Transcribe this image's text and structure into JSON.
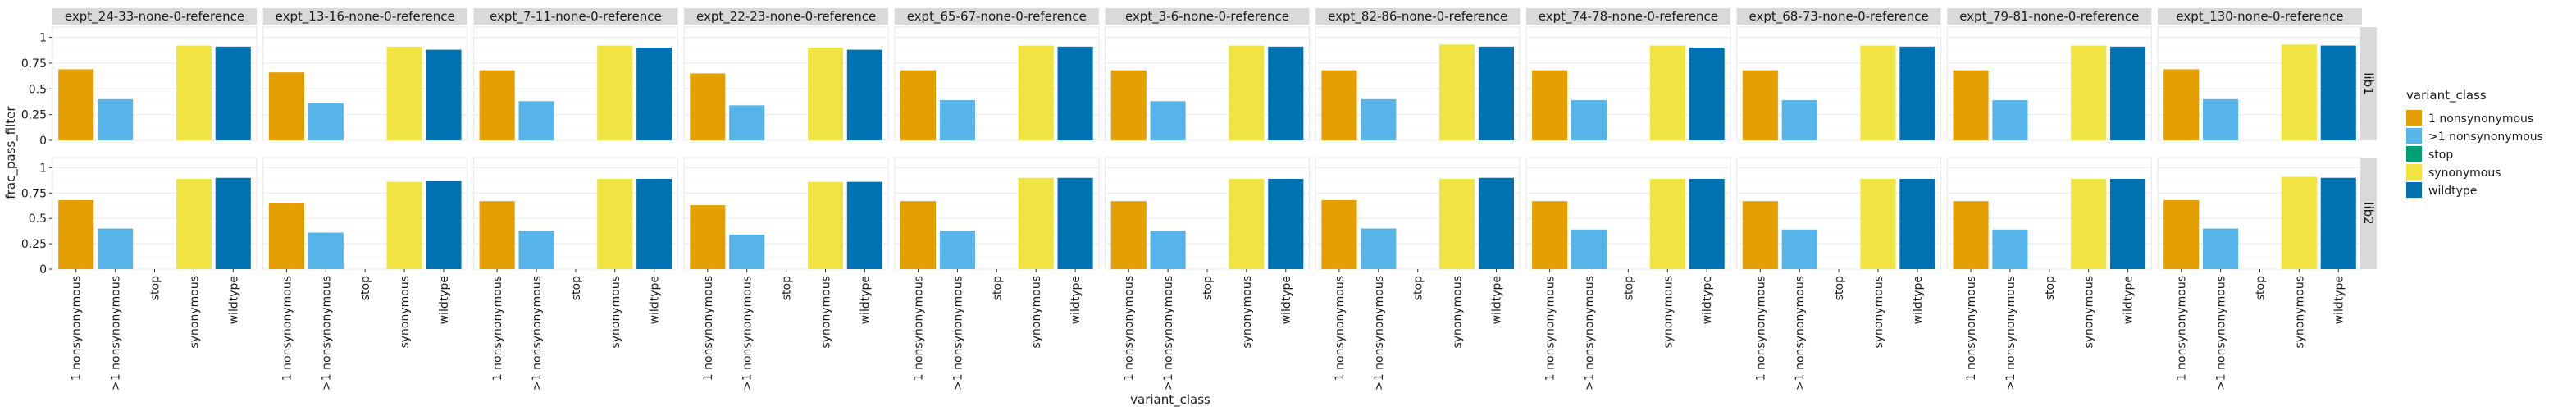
{
  "chart_data": {
    "type": "bar",
    "xlabel": "variant_class",
    "ylabel": "frac_pass_filter",
    "ylim": [
      0,
      1.1
    ],
    "yticks": [
      0,
      0.25,
      0.5,
      0.75,
      1
    ],
    "ytick_labels": [
      "0",
      "0.25",
      "0.5",
      "0.75",
      "1"
    ],
    "categories": [
      "1 nonsynonymous",
      ">1 nonsynonymous",
      "stop",
      "synonymous",
      "wildtype"
    ],
    "colors": {
      "1 nonsynonymous": "#E69F00",
      ">1 nonsynonymous": "#56B4E9",
      "stop": "#009E73",
      "synonymous": "#F0E442",
      "wildtype": "#0072B2"
    },
    "legend": {
      "title": "variant_class",
      "position": "right",
      "entries": [
        "1 nonsynonymous",
        ">1 nonsynonymous",
        "stop",
        "synonymous",
        "wildtype"
      ]
    },
    "facet_columns": [
      "expt_24-33-none-0-reference",
      "expt_13-16-none-0-reference",
      "expt_7-11-none-0-reference",
      "expt_22-23-none-0-reference",
      "expt_65-67-none-0-reference",
      "expt_3-6-none-0-reference",
      "expt_82-86-none-0-reference",
      "expt_74-78-none-0-reference",
      "expt_68-73-none-0-reference",
      "expt_79-81-none-0-reference",
      "expt_130-none-0-reference"
    ],
    "facet_rows": [
      "lib1",
      "lib2"
    ],
    "panels": [
      {
        "row": "lib1",
        "col": "expt_24-33-none-0-reference",
        "values": [
          0.69,
          0.4,
          0,
          0.92,
          0.91
        ]
      },
      {
        "row": "lib1",
        "col": "expt_13-16-none-0-reference",
        "values": [
          0.66,
          0.36,
          0,
          0.91,
          0.88
        ]
      },
      {
        "row": "lib1",
        "col": "expt_7-11-none-0-reference",
        "values": [
          0.68,
          0.38,
          0,
          0.92,
          0.9
        ]
      },
      {
        "row": "lib1",
        "col": "expt_22-23-none-0-reference",
        "values": [
          0.65,
          0.34,
          0,
          0.9,
          0.88
        ]
      },
      {
        "row": "lib1",
        "col": "expt_65-67-none-0-reference",
        "values": [
          0.68,
          0.39,
          0,
          0.92,
          0.91
        ]
      },
      {
        "row": "lib1",
        "col": "expt_3-6-none-0-reference",
        "values": [
          0.68,
          0.38,
          0,
          0.92,
          0.91
        ]
      },
      {
        "row": "lib1",
        "col": "expt_82-86-none-0-reference",
        "values": [
          0.68,
          0.4,
          0,
          0.93,
          0.91
        ]
      },
      {
        "row": "lib1",
        "col": "expt_74-78-none-0-reference",
        "values": [
          0.68,
          0.39,
          0,
          0.92,
          0.9
        ]
      },
      {
        "row": "lib1",
        "col": "expt_68-73-none-0-reference",
        "values": [
          0.68,
          0.39,
          0,
          0.92,
          0.91
        ]
      },
      {
        "row": "lib1",
        "col": "expt_79-81-none-0-reference",
        "values": [
          0.68,
          0.39,
          0,
          0.92,
          0.91
        ]
      },
      {
        "row": "lib1",
        "col": "expt_130-none-0-reference",
        "values": [
          0.69,
          0.4,
          0,
          0.93,
          0.92
        ]
      },
      {
        "row": "lib2",
        "col": "expt_24-33-none-0-reference",
        "values": [
          0.68,
          0.4,
          0,
          0.89,
          0.9
        ]
      },
      {
        "row": "lib2",
        "col": "expt_13-16-none-0-reference",
        "values": [
          0.65,
          0.36,
          0,
          0.86,
          0.87
        ]
      },
      {
        "row": "lib2",
        "col": "expt_7-11-none-0-reference",
        "values": [
          0.67,
          0.38,
          0,
          0.89,
          0.89
        ]
      },
      {
        "row": "lib2",
        "col": "expt_22-23-none-0-reference",
        "values": [
          0.63,
          0.34,
          0,
          0.86,
          0.86
        ]
      },
      {
        "row": "lib2",
        "col": "expt_65-67-none-0-reference",
        "values": [
          0.67,
          0.38,
          0,
          0.9,
          0.9
        ]
      },
      {
        "row": "lib2",
        "col": "expt_3-6-none-0-reference",
        "values": [
          0.67,
          0.38,
          0,
          0.89,
          0.89
        ]
      },
      {
        "row": "lib2",
        "col": "expt_82-86-none-0-reference",
        "values": [
          0.68,
          0.4,
          0,
          0.89,
          0.9
        ]
      },
      {
        "row": "lib2",
        "col": "expt_74-78-none-0-reference",
        "values": [
          0.67,
          0.39,
          0,
          0.89,
          0.89
        ]
      },
      {
        "row": "lib2",
        "col": "expt_68-73-none-0-reference",
        "values": [
          0.67,
          0.39,
          0,
          0.89,
          0.89
        ]
      },
      {
        "row": "lib2",
        "col": "expt_79-81-none-0-reference",
        "values": [
          0.67,
          0.39,
          0,
          0.89,
          0.89
        ]
      },
      {
        "row": "lib2",
        "col": "expt_130-none-0-reference",
        "values": [
          0.68,
          0.4,
          0,
          0.91,
          0.9
        ]
      }
    ]
  }
}
